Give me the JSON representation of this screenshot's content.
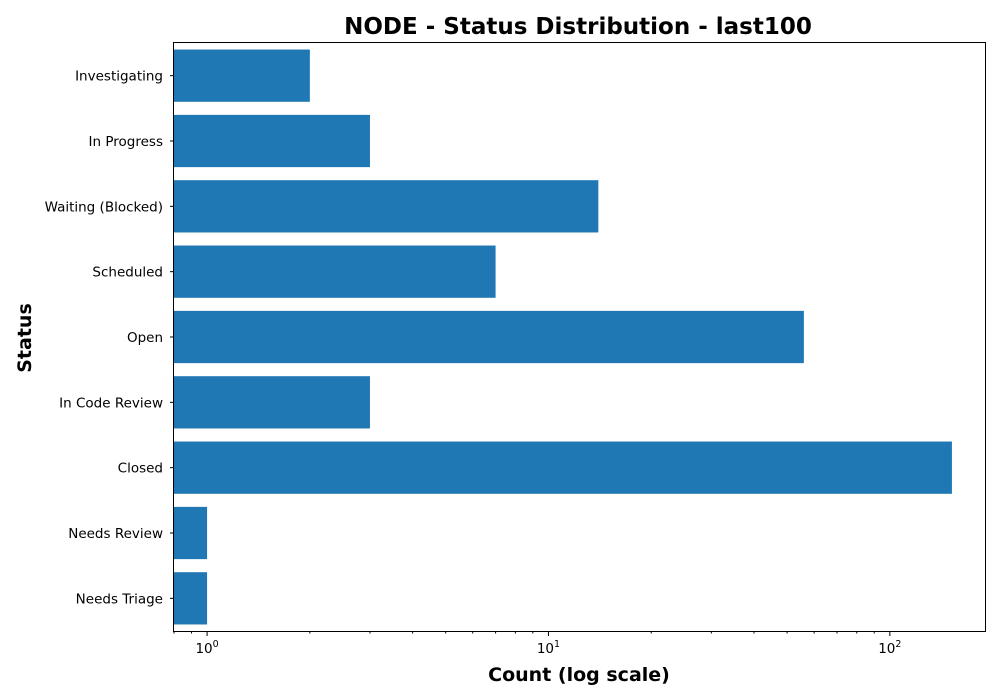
{
  "chart_data": {
    "type": "bar",
    "orientation": "horizontal",
    "title": "NODE - Status Distribution - last100",
    "xlabel": "Count (log scale)",
    "ylabel": "Status",
    "x_scale": "log",
    "xlim": [
      0.8,
      190
    ],
    "x_ticks": [
      {
        "value": 1,
        "base": "10",
        "exp": "0"
      },
      {
        "value": 10,
        "base": "10",
        "exp": "1"
      },
      {
        "value": 100,
        "base": "10",
        "exp": "2"
      }
    ],
    "categories": [
      "Investigating",
      "In Progress",
      "Waiting (Blocked)",
      "Scheduled",
      "Open",
      "In Code Review",
      "Closed",
      "Needs Review",
      "Needs Triage"
    ],
    "values": [
      2,
      3,
      14,
      7,
      56,
      3,
      152,
      1,
      1
    ],
    "bar_color": "#1f77b4",
    "grid": false,
    "legend": "none"
  }
}
